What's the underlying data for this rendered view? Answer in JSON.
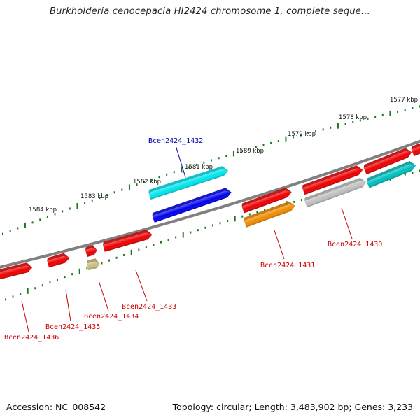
{
  "title": "Burkholderia cenocepacia HI2424 chromosome 1, complete seque...",
  "footer": {
    "accession": "Accession: NC_008542",
    "topology": "Topology: circular; Length: 3,483,902 bp; Genes: 3,233"
  },
  "colors": {
    "backbone": "#808080",
    "tick": "#1a7a1a",
    "label_red": "#cc0000",
    "label_blue": "#0000aa",
    "gene_red": "#ee0000",
    "gene_cyan": "#00e5ee",
    "gene_blue": "#0000ee",
    "gene_orange": "#f08c00",
    "gene_gray": "#c0c0c0",
    "gene_teal": "#00bfbf",
    "gene_khaki": "#c8bc7a"
  },
  "kbp_labels": [
    "1577 kbp",
    "1578 kbp",
    "1579 kbp",
    "1580 kbp",
    "1581 kbp",
    "1582 kbp",
    "1583 kbp",
    "1584 kbp"
  ],
  "gene_labels": [
    {
      "text": "Bcen2424_1432",
      "color": "blue"
    },
    {
      "text": "Bcen2424_1431",
      "color": "red"
    },
    {
      "text": "Bcen2424_1430",
      "color": "red"
    },
    {
      "text": "Bcen2424_1433",
      "color": "red"
    },
    {
      "text": "Bcen2424_1434",
      "color": "red"
    },
    {
      "text": "Bcen2424_1435",
      "color": "red"
    },
    {
      "text": "Bcen2424_1436",
      "color": "red"
    }
  ]
}
